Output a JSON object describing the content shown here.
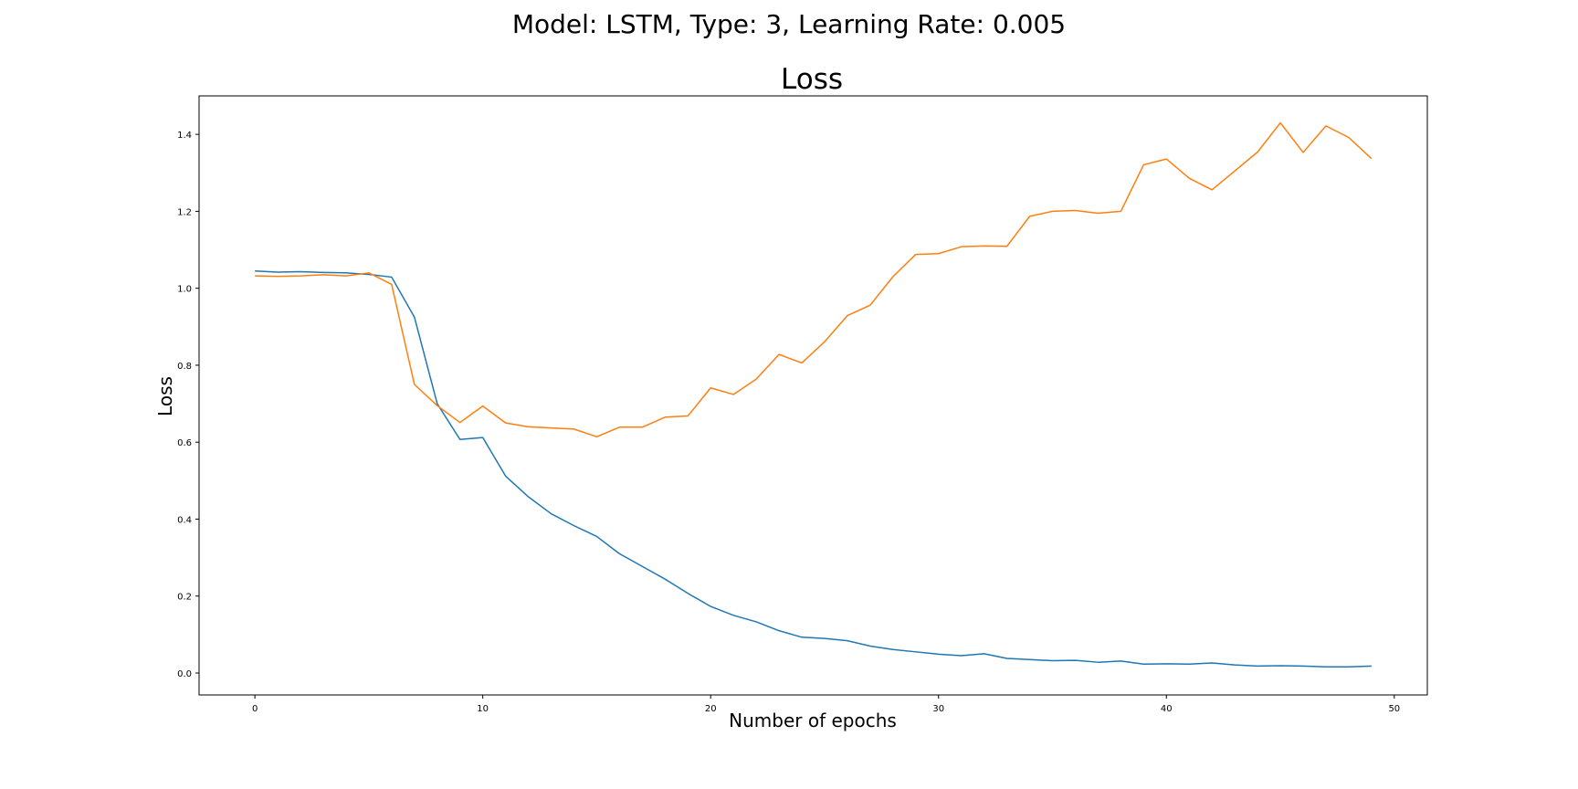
{
  "figure": {
    "suptitle": "Model: LSTM, Type: 3, Learning Rate: 0.005"
  },
  "chart_data": {
    "type": "line",
    "title": "Loss",
    "xlabel": "Number of epochs",
    "ylabel": "Loss",
    "xlim": [
      -2.45,
      51.45
    ],
    "ylim": [
      -0.057,
      1.5
    ],
    "xticks": [
      "0",
      "10",
      "20",
      "30",
      "40",
      "50"
    ],
    "yticks": [
      "0.0",
      "0.2",
      "0.4",
      "0.6",
      "0.8",
      "1.0",
      "1.2",
      "1.4"
    ],
    "grid": false,
    "legend": "none",
    "x": [
      0,
      1,
      2,
      3,
      4,
      5,
      6,
      7,
      8,
      9,
      10,
      11,
      12,
      13,
      14,
      15,
      16,
      17,
      18,
      19,
      20,
      21,
      22,
      23,
      24,
      25,
      26,
      27,
      28,
      29,
      30,
      31,
      32,
      33,
      34,
      35,
      36,
      37,
      38,
      39,
      40,
      41,
      42,
      43,
      44,
      45,
      46,
      47,
      48,
      49
    ],
    "series": [
      {
        "color": "#1f77b4",
        "values": [
          1.045,
          1.042,
          1.043,
          1.041,
          1.04,
          1.036,
          1.029,
          0.925,
          0.7,
          0.607,
          0.612,
          0.512,
          0.458,
          0.414,
          0.383,
          0.355,
          0.31,
          0.277,
          0.244,
          0.207,
          0.173,
          0.15,
          0.133,
          0.11,
          0.093,
          0.09,
          0.084,
          0.07,
          0.061,
          0.055,
          0.049,
          0.045,
          0.05,
          0.038,
          0.035,
          0.032,
          0.033,
          0.028,
          0.031,
          0.023,
          0.024,
          0.023,
          0.026,
          0.021,
          0.018,
          0.019,
          0.018,
          0.016,
          0.016,
          0.018
        ]
      },
      {
        "color": "#ff7f0e",
        "values": [
          1.032,
          1.031,
          1.032,
          1.035,
          1.032,
          1.04,
          1.01,
          0.75,
          0.695,
          0.651,
          0.694,
          0.65,
          0.64,
          0.637,
          0.634,
          0.614,
          0.639,
          0.639,
          0.665,
          0.668,
          0.741,
          0.724,
          0.764,
          0.828,
          0.806,
          0.861,
          0.929,
          0.956,
          1.03,
          1.088,
          1.09,
          1.108,
          1.11,
          1.109,
          1.187,
          1.2,
          1.202,
          1.195,
          1.2,
          1.321,
          1.336,
          1.286,
          1.256,
          1.305,
          1.354,
          1.43,
          1.353,
          1.422,
          1.392,
          1.337
        ]
      }
    ]
  }
}
